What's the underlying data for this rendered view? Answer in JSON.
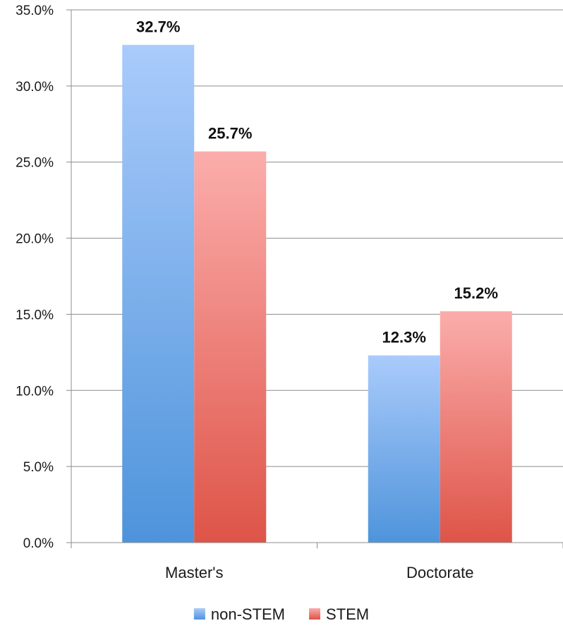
{
  "chart_data": {
    "type": "bar",
    "categories": [
      "Master's",
      "Doctorate"
    ],
    "series": [
      {
        "name": "non-STEM",
        "values": [
          32.7,
          12.3
        ],
        "labels": [
          "32.7%",
          "12.3%"
        ],
        "colors": [
          "#aacbfb",
          "#4e94db"
        ]
      },
      {
        "name": "STEM",
        "values": [
          25.7,
          15.2
        ],
        "labels": [
          "25.7%",
          "15.2%"
        ],
        "colors": [
          "#fbadab",
          "#de5448"
        ]
      }
    ],
    "ylim": [
      0,
      35
    ],
    "y_ticks": [
      0,
      5,
      10,
      15,
      20,
      25,
      30,
      35
    ],
    "y_tick_labels": [
      "0.0%",
      "5.0%",
      "10.0%",
      "15.0%",
      "20.0%",
      "25.0%",
      "30.0%",
      "35.0%"
    ],
    "grid": true,
    "legend_position": "bottom",
    "title": "",
    "xlabel": "",
    "ylabel": ""
  }
}
